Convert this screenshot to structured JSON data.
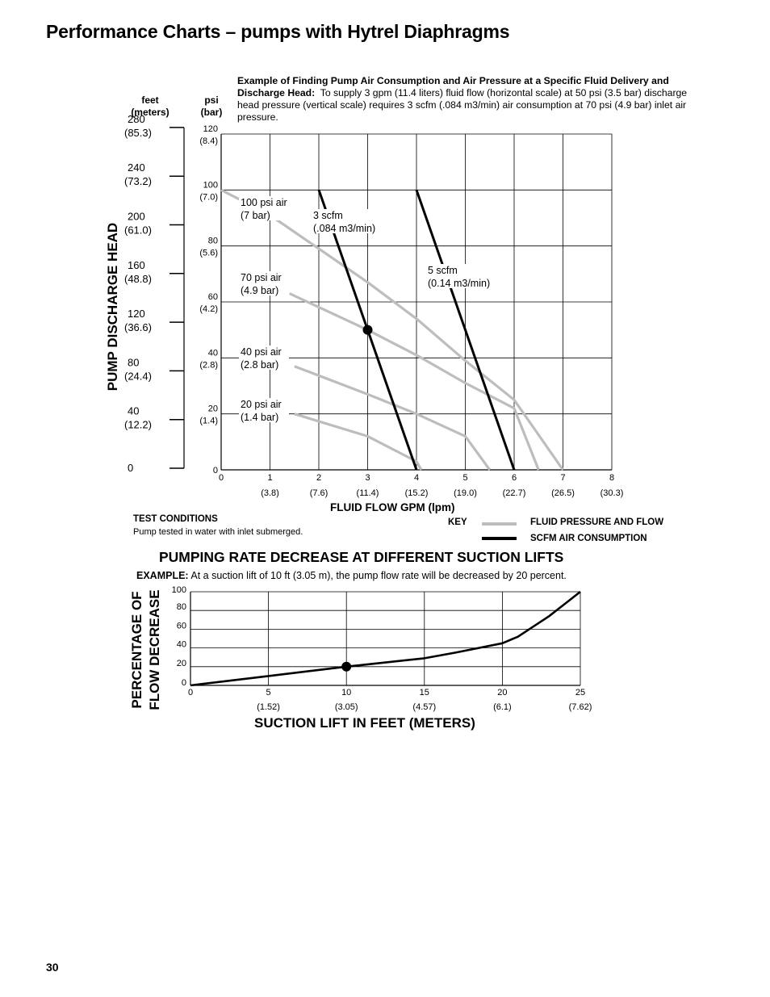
{
  "page": {
    "title": "Performance Charts – pumps with Hytrel Diaphragms",
    "page_number": "30"
  },
  "example_note": {
    "bold": "Example of Finding Pump Air Consumption and Air Pressure at a Specific Fluid Delivery and Discharge Head:",
    "text": "To supply 3 gpm (11.4 liters) fluid flow (horizontal scale) at 50 psi (3.5 bar) discharge head pressure (vertical scale) requires 3 scfm (.084 m3/min) air consumption at 70 psi (4.9 bar) inlet air pressure."
  },
  "chart1": {
    "feet_header": [
      "feet",
      "(meters)"
    ],
    "psi_header": [
      "psi",
      "(bar)"
    ],
    "y_title": "PUMP DISCHARGE HEAD",
    "x_title": "FLUID FLOW GPM (lpm)",
    "feet_ticks": [
      {
        "ft": "280",
        "m": "(85.3)"
      },
      {
        "ft": "240",
        "m": "(73.2)"
      },
      {
        "ft": "200",
        "m": "(61.0)"
      },
      {
        "ft": "160",
        "m": "(48.8)"
      },
      {
        "ft": "120",
        "m": "(36.6)"
      },
      {
        "ft": "80",
        "m": "(24.4)"
      },
      {
        "ft": "40",
        "m": "(12.2)"
      },
      {
        "ft": "0",
        "m": ""
      }
    ],
    "psi_ticks": [
      {
        "psi": "120",
        "bar": "(8.4)"
      },
      {
        "psi": "100",
        "bar": "(7.0)"
      },
      {
        "psi": "80",
        "bar": "(5.6)"
      },
      {
        "psi": "60",
        "bar": "(4.2)"
      },
      {
        "psi": "40",
        "bar": "(2.8)"
      },
      {
        "psi": "20",
        "bar": "(1.4)"
      },
      {
        "psi": "0",
        "bar": ""
      }
    ],
    "x_ticks": [
      {
        "gpm": "0",
        "lpm": ""
      },
      {
        "gpm": "1",
        "lpm": "(3.8)"
      },
      {
        "gpm": "2",
        "lpm": "(7.6)"
      },
      {
        "gpm": "3",
        "lpm": "(11.4)"
      },
      {
        "gpm": "4",
        "lpm": "(15.2)"
      },
      {
        "gpm": "5",
        "lpm": "(19.0)"
      },
      {
        "gpm": "6",
        "lpm": "(22.7)"
      },
      {
        "gpm": "7",
        "lpm": "(26.5)"
      },
      {
        "gpm": "8",
        "lpm": "(30.3)"
      }
    ],
    "curve_labels": [
      {
        "l1": "100 psi air",
        "l2": "(7 bar)"
      },
      {
        "l1": "70 psi air",
        "l2": "(4.9 bar)"
      },
      {
        "l1": "40 psi air",
        "l2": "(2.8 bar)"
      },
      {
        "l1": "20 psi air",
        "l2": "(1.4 bar)"
      },
      {
        "l1": "3 scfm",
        "l2": "(.084 m3/min)"
      },
      {
        "l1": "5 scfm",
        "l2": "(0.14 m3/min)"
      }
    ]
  },
  "test_conditions": {
    "title": "TEST CONDITIONS",
    "text": "Pump tested in water with inlet submerged."
  },
  "key": {
    "label": "KEY",
    "gray": "FLUID PRESSURE AND FLOW",
    "black": "SCFM AIR CONSUMPTION",
    "gray_color": "#bdbdbd",
    "black_color": "#000000"
  },
  "chart2": {
    "section_title": "PUMPING RATE DECREASE AT DIFFERENT SUCTION LIFTS",
    "example_bold": "EXAMPLE:",
    "example_text": "At a suction lift of 10 ft (3.05 m), the pump flow rate will be decreased by 20 percent.",
    "y_title_1": "PERCENTAGE OF",
    "y_title_2": "FLOW DECREASE",
    "x_title": "SUCTION LIFT IN FEET (METERS)",
    "y_ticks": [
      "100",
      "80",
      "60",
      "40",
      "20",
      "0"
    ],
    "x_ticks": [
      {
        "ft": "0",
        "m": ""
      },
      {
        "ft": "5",
        "m": "(1.52)"
      },
      {
        "ft": "10",
        "m": "(3.05)"
      },
      {
        "ft": "15",
        "m": "(4.57)"
      },
      {
        "ft": "20",
        "m": "(6.1)"
      },
      {
        "ft": "25",
        "m": "(7.62)"
      }
    ]
  },
  "chart_data": [
    {
      "type": "line",
      "x_axis": "fluid flow (gpm)",
      "y_axis": "discharge head (psi)",
      "xlim": [
        0,
        8
      ],
      "ylim": [
        0,
        120
      ],
      "grid": true,
      "series": [
        {
          "name": "100 psi air (7 bar)",
          "kind": "fluid pressure and flow",
          "color": "#bdbdbd",
          "points": [
            [
              0,
              100
            ],
            [
              1,
              91
            ],
            [
              2,
              79
            ],
            [
              3,
              67
            ],
            [
              4,
              54
            ],
            [
              5,
              39
            ],
            [
              6,
              25
            ],
            [
              7,
              0
            ]
          ]
        },
        {
          "name": "70 psi air (4.9 bar)",
          "kind": "fluid pressure and flow",
          "color": "#bdbdbd",
          "points": [
            [
              1.4,
              63
            ],
            [
              3,
              50
            ],
            [
              4,
              41
            ],
            [
              5,
              31
            ],
            [
              6,
              22
            ],
            [
              6.5,
              0
            ]
          ]
        },
        {
          "name": "40 psi air (2.8 bar)",
          "kind": "fluid pressure and flow",
          "color": "#bdbdbd",
          "points": [
            [
              1.5,
              37
            ],
            [
              3,
              27
            ],
            [
              4,
              20
            ],
            [
              5,
              12
            ],
            [
              5.5,
              0
            ]
          ]
        },
        {
          "name": "20 psi air (1.4 bar)",
          "kind": "fluid pressure and flow",
          "color": "#bdbdbd",
          "points": [
            [
              1.5,
              20
            ],
            [
              3,
              12
            ],
            [
              4,
              3
            ],
            [
              4.1,
              0
            ]
          ]
        },
        {
          "name": "3 scfm (.084 m3/min)",
          "kind": "scfm air consumption",
          "color": "#000000",
          "points": [
            [
              2,
              100
            ],
            [
              4,
              0
            ]
          ]
        },
        {
          "name": "5 scfm (0.14 m3/min)",
          "kind": "scfm air consumption",
          "color": "#000000",
          "points": [
            [
              4,
              100
            ],
            [
              6,
              0
            ]
          ]
        }
      ],
      "marker": {
        "x": 3,
        "y": 50
      }
    },
    {
      "type": "line",
      "x_axis": "suction lift (ft)",
      "y_axis": "percentage of flow decrease",
      "xlim": [
        0,
        25
      ],
      "ylim": [
        0,
        100
      ],
      "grid": true,
      "series": [
        {
          "name": "flow decrease",
          "color": "#000000",
          "points": [
            [
              0,
              0
            ],
            [
              5,
              10
            ],
            [
              10,
              20
            ],
            [
              15,
              29
            ],
            [
              17,
              35
            ],
            [
              20,
              45
            ],
            [
              21,
              52
            ],
            [
              23,
              74
            ],
            [
              24,
              87
            ],
            [
              25,
              100
            ]
          ]
        }
      ],
      "marker": {
        "x": 10,
        "y": 20
      }
    }
  ]
}
